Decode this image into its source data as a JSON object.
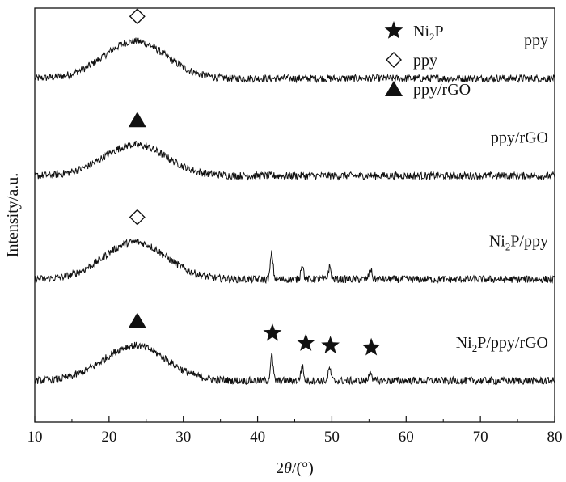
{
  "chart_data": {
    "type": "line",
    "title": "",
    "xlabel": {
      "prefix": "2",
      "italic": "θ",
      "suffix": "/(°)"
    },
    "ylabel": "Intensity/a.u.",
    "xlim": [
      10,
      80
    ],
    "xticks": [
      10,
      20,
      30,
      40,
      50,
      60,
      70,
      80
    ],
    "yticks": [],
    "grid": false,
    "legend": {
      "placement": "top-right",
      "items": [
        {
          "marker": "star",
          "base": "Ni",
          "sub": "2",
          "tail": "P"
        },
        {
          "marker": "diamond",
          "base": "ppy",
          "sub": "",
          "tail": ""
        },
        {
          "marker": "triangle",
          "base": "ppy/rGO",
          "sub": "",
          "tail": ""
        }
      ]
    },
    "series": [
      {
        "label": {
          "base": "ppy",
          "sub": "",
          "tail": ""
        },
        "offset": 0.83,
        "hump": {
          "center": 23.5,
          "height": 0.09,
          "width": 4.2
        },
        "peaks": [],
        "noise": 0.009,
        "markers": [
          {
            "type": "diamond",
            "x": 23.8
          }
        ]
      },
      {
        "label": {
          "base": "ppy/rGO",
          "sub": "",
          "tail": ""
        },
        "offset": 0.595,
        "hump": {
          "center": 23.5,
          "height": 0.075,
          "width": 4.2
        },
        "peaks": [],
        "noise": 0.009,
        "markers": [
          {
            "type": "triangle",
            "x": 23.8
          }
        ]
      },
      {
        "label": {
          "base": "Ni",
          "sub": "2",
          "tail": "P/ppy"
        },
        "offset": 0.345,
        "hump": {
          "center": 23.5,
          "height": 0.09,
          "width": 4.2
        },
        "peaks": [
          {
            "x": 41.9,
            "h": 0.062
          },
          {
            "x": 46.0,
            "h": 0.038
          },
          {
            "x": 49.7,
            "h": 0.03
          },
          {
            "x": 55.2,
            "h": 0.025
          }
        ],
        "noise": 0.009,
        "markers": [
          {
            "type": "diamond",
            "x": 23.8
          }
        ]
      },
      {
        "label": {
          "base": "Ni",
          "sub": "2",
          "tail": "P/ppy/rGO"
        },
        "offset": 0.1,
        "hump": {
          "center": 23.5,
          "height": 0.085,
          "width": 4.2
        },
        "peaks": [
          {
            "x": 41.9,
            "h": 0.06
          },
          {
            "x": 46.0,
            "h": 0.036
          },
          {
            "x": 49.7,
            "h": 0.03
          },
          {
            "x": 55.2,
            "h": 0.025
          }
        ],
        "noise": 0.009,
        "markers": [
          {
            "type": "triangle",
            "x": 23.8
          },
          {
            "type": "star",
            "x": 42.0
          },
          {
            "type": "star",
            "x": 46.5
          },
          {
            "type": "star",
            "x": 49.8
          },
          {
            "type": "star",
            "x": 55.3
          }
        ]
      }
    ]
  }
}
